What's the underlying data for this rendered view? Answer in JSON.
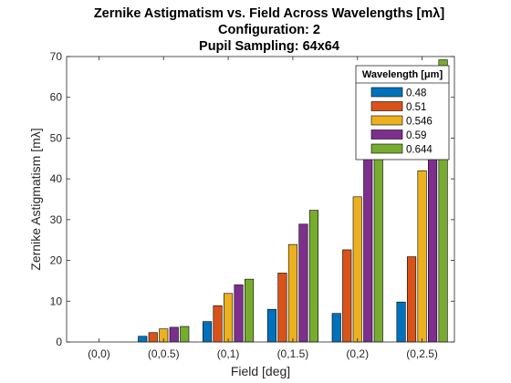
{
  "chart_data": {
    "type": "bar",
    "title_lines": [
      "Zernike Astigmatism vs. Field Across Wavelengths [mλ]",
      "Configuration: 2",
      "Pupil Sampling: 64x64"
    ],
    "xlabel": "Field [deg]",
    "ylabel": "Zernike Astigmatism [mλ]",
    "categories": [
      "(0,0)",
      "(0,0.5)",
      "(0,1)",
      "(0,1.5)",
      "(0,2)",
      "(0,2.5)"
    ],
    "ylim": [
      0,
      70
    ],
    "yticks": [
      0,
      10,
      20,
      30,
      40,
      50,
      60,
      70
    ],
    "grid": false,
    "legend": {
      "title": "Wavelength [μm]",
      "placement": "top-right"
    },
    "series": [
      {
        "name": "0.48",
        "color": "#0072BD",
        "values": [
          0,
          1.4,
          5.0,
          8.0,
          7.0,
          9.8
        ]
      },
      {
        "name": "0.51",
        "color": "#D95319",
        "values": [
          0,
          2.3,
          8.9,
          16.9,
          22.6,
          20.9
        ]
      },
      {
        "name": "0.546",
        "color": "#EDB120",
        "values": [
          0,
          3.2,
          11.9,
          23.9,
          35.6,
          42.0
        ]
      },
      {
        "name": "0.59",
        "color": "#7E2F8E",
        "values": [
          0,
          3.6,
          14.0,
          28.9,
          50.0,
          56.0
        ]
      },
      {
        "name": "0.644",
        "color": "#77AC30",
        "values": [
          0,
          3.8,
          15.4,
          32.3,
          61.0,
          69.2
        ]
      }
    ]
  }
}
